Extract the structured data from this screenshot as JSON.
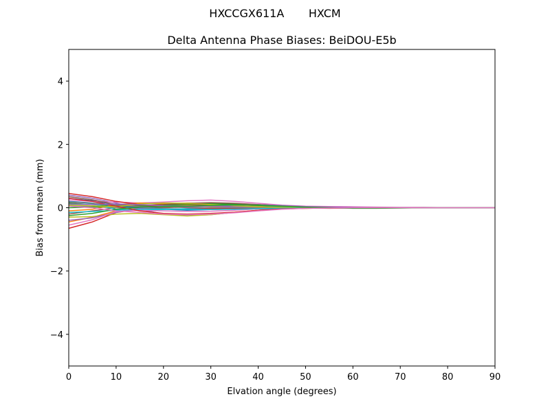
{
  "figure": {
    "suptitle": "HXCCGX611A       HXCM"
  },
  "chart_data": {
    "type": "line",
    "title": "Delta Antenna Phase Biases: BeiDOU-E5b",
    "xlabel": "Elvation angle (degrees)",
    "ylabel": "Bias from mean (mm)",
    "xlim": [
      0,
      90
    ],
    "ylim": [
      -5,
      5
    ],
    "xticks": [
      "0",
      "10",
      "20",
      "30",
      "40",
      "50",
      "60",
      "70",
      "80",
      "90"
    ],
    "yticks": [
      "−4",
      "−2",
      "0",
      "2",
      "4"
    ],
    "ytick_values": [
      -4,
      -2,
      0,
      2,
      4
    ],
    "grid": false,
    "legend": "none",
    "x": [
      0,
      5,
      10,
      15,
      20,
      25,
      30,
      35,
      40,
      45,
      50,
      55,
      60,
      65,
      70,
      75,
      80,
      85,
      90
    ],
    "series": [
      {
        "color": "#1f77b4",
        "values": [
          0.3,
          0.22,
          0.1,
          0.02,
          -0.05,
          -0.08,
          -0.06,
          -0.04,
          -0.02,
          -0.01,
          -0.01,
          0.0,
          0.0,
          0.0,
          0.0,
          0.0,
          0.0,
          0.0,
          0.0
        ]
      },
      {
        "color": "#ff7f0e",
        "values": [
          -0.45,
          -0.3,
          -0.1,
          0.05,
          0.12,
          0.15,
          0.14,
          0.1,
          0.06,
          0.03,
          0.01,
          0.0,
          -0.01,
          0.0,
          0.0,
          0.0,
          0.0,
          0.0,
          0.0
        ]
      },
      {
        "color": "#2ca02c",
        "values": [
          0.15,
          0.1,
          0.05,
          0.03,
          0.05,
          0.08,
          0.1,
          0.09,
          0.07,
          0.04,
          0.02,
          0.01,
          0.0,
          0.0,
          0.0,
          0.0,
          0.0,
          0.0,
          0.0
        ]
      },
      {
        "color": "#d62728",
        "values": [
          -0.65,
          -0.45,
          -0.15,
          -0.05,
          0.0,
          0.02,
          0.0,
          -0.02,
          -0.03,
          -0.02,
          -0.01,
          0.0,
          0.0,
          0.0,
          0.0,
          0.0,
          0.0,
          0.0,
          0.0
        ]
      },
      {
        "color": "#9467bd",
        "values": [
          0.4,
          0.3,
          0.15,
          -0.05,
          -0.2,
          -0.25,
          -0.22,
          -0.15,
          -0.08,
          -0.03,
          -0.01,
          0.01,
          0.01,
          0.0,
          0.0,
          0.0,
          0.0,
          0.0,
          0.0
        ]
      },
      {
        "color": "#8c564b",
        "values": [
          -0.2,
          -0.1,
          0.0,
          0.05,
          0.08,
          0.1,
          0.08,
          0.05,
          0.02,
          0.0,
          -0.01,
          -0.02,
          -0.01,
          0.0,
          0.0,
          0.0,
          0.0,
          0.0,
          0.0
        ]
      },
      {
        "color": "#e377c2",
        "values": [
          0.25,
          0.2,
          0.18,
          0.15,
          0.18,
          0.22,
          0.24,
          0.2,
          0.14,
          0.08,
          0.05,
          0.04,
          0.03,
          0.02,
          0.01,
          0.01,
          0.0,
          0.0,
          0.0
        ]
      },
      {
        "color": "#7f7f7f",
        "values": [
          0.05,
          0.03,
          0.0,
          -0.02,
          -0.03,
          -0.04,
          -0.03,
          -0.02,
          -0.01,
          0.0,
          0.0,
          0.0,
          0.0,
          0.0,
          0.0,
          0.0,
          0.0,
          0.0,
          0.0
        ]
      },
      {
        "color": "#bcbd22",
        "values": [
          -0.3,
          -0.28,
          -0.2,
          -0.18,
          -0.22,
          -0.26,
          -0.22,
          -0.15,
          -0.08,
          -0.04,
          -0.02,
          -0.01,
          0.0,
          0.0,
          0.0,
          0.0,
          0.0,
          0.0,
          0.0
        ]
      },
      {
        "color": "#17becf",
        "values": [
          0.1,
          0.12,
          -0.05,
          -0.08,
          -0.06,
          -0.03,
          0.0,
          0.02,
          0.03,
          0.02,
          0.01,
          0.0,
          0.0,
          0.0,
          0.0,
          0.0,
          0.0,
          0.0,
          0.0
        ]
      },
      {
        "color": "#1f77b4",
        "values": [
          0.2,
          0.15,
          0.05,
          0.0,
          0.02,
          0.05,
          0.06,
          0.05,
          0.03,
          0.01,
          0.0,
          0.0,
          0.0,
          0.0,
          0.0,
          0.0,
          0.0,
          0.0,
          0.0
        ]
      },
      {
        "color": "#ff7f0e",
        "values": [
          -0.1,
          -0.05,
          0.1,
          0.15,
          0.12,
          0.08,
          0.04,
          0.01,
          -0.01,
          -0.02,
          -0.02,
          -0.01,
          0.0,
          0.0,
          0.0,
          0.0,
          0.0,
          0.0,
          0.0
        ]
      },
      {
        "color": "#2ca02c",
        "values": [
          0.0,
          0.02,
          0.05,
          0.06,
          0.08,
          0.11,
          0.13,
          0.12,
          0.1,
          0.06,
          0.03,
          0.01,
          0.0,
          -0.01,
          0.0,
          0.0,
          0.0,
          0.0,
          0.0
        ]
      },
      {
        "color": "#d62728",
        "values": [
          0.45,
          0.35,
          0.2,
          0.1,
          0.04,
          0.0,
          -0.02,
          -0.03,
          -0.02,
          -0.01,
          0.0,
          0.0,
          0.0,
          0.0,
          0.0,
          0.0,
          0.0,
          0.0,
          0.0
        ]
      },
      {
        "color": "#9467bd",
        "values": [
          -0.4,
          -0.32,
          -0.15,
          -0.02,
          0.05,
          0.06,
          0.05,
          0.03,
          0.01,
          0.0,
          0.0,
          0.0,
          0.0,
          0.0,
          0.0,
          0.0,
          0.0,
          0.0,
          0.0
        ]
      },
      {
        "color": "#8c564b",
        "values": [
          0.35,
          0.25,
          0.1,
          0.08,
          0.1,
          0.14,
          0.16,
          0.14,
          0.1,
          0.06,
          0.03,
          0.01,
          0.0,
          0.0,
          0.0,
          0.0,
          0.0,
          0.0,
          0.0
        ]
      },
      {
        "color": "#e377c2",
        "values": [
          -0.55,
          -0.38,
          -0.12,
          -0.08,
          -0.1,
          -0.12,
          -0.11,
          -0.08,
          -0.04,
          -0.02,
          -0.01,
          0.0,
          0.0,
          0.0,
          0.0,
          0.0,
          0.0,
          0.0,
          0.0
        ]
      },
      {
        "color": "#7f7f7f",
        "values": [
          0.18,
          0.14,
          0.08,
          0.04,
          0.02,
          0.01,
          0.0,
          0.0,
          0.0,
          0.0,
          0.0,
          0.0,
          0.0,
          0.0,
          0.0,
          0.0,
          0.0,
          0.0,
          0.0
        ]
      },
      {
        "color": "#bcbd22",
        "values": [
          0.08,
          0.06,
          0.03,
          0.12,
          0.15,
          0.14,
          0.1,
          0.06,
          0.03,
          0.01,
          0.0,
          0.0,
          0.0,
          0.0,
          0.0,
          0.0,
          0.0,
          0.0,
          0.0
        ]
      },
      {
        "color": "#17becf",
        "values": [
          -0.15,
          -0.12,
          -0.08,
          -0.05,
          -0.04,
          -0.05,
          -0.06,
          -0.05,
          -0.03,
          -0.02,
          -0.01,
          0.0,
          0.0,
          0.0,
          0.0,
          0.0,
          0.0,
          0.0,
          0.0
        ]
      },
      {
        "color": "#d62728",
        "values": [
          0.3,
          0.2,
          0.05,
          -0.1,
          -0.18,
          -0.2,
          -0.18,
          -0.14,
          -0.08,
          -0.04,
          -0.02,
          -0.01,
          0.0,
          0.0,
          0.0,
          0.0,
          0.0,
          0.0,
          0.0
        ]
      },
      {
        "color": "#9467bd",
        "values": [
          0.12,
          0.1,
          0.12,
          0.1,
          0.06,
          0.04,
          0.05,
          0.08,
          0.09,
          0.07,
          0.04,
          0.02,
          0.01,
          0.0,
          0.0,
          0.0,
          0.0,
          0.0,
          0.0
        ]
      },
      {
        "color": "#2ca02c",
        "values": [
          -0.25,
          -0.18,
          -0.05,
          0.02,
          0.04,
          0.05,
          0.07,
          0.09,
          0.08,
          0.05,
          0.02,
          0.0,
          -0.02,
          -0.02,
          -0.01,
          0.0,
          0.0,
          0.0,
          0.0
        ]
      },
      {
        "color": "#e377c2",
        "values": [
          0.05,
          0.0,
          -0.1,
          -0.15,
          -0.2,
          -0.22,
          -0.2,
          -0.16,
          -0.1,
          -0.05,
          -0.02,
          -0.01,
          0.0,
          0.0,
          0.0,
          0.0,
          0.0,
          0.0,
          0.0
        ]
      }
    ]
  }
}
